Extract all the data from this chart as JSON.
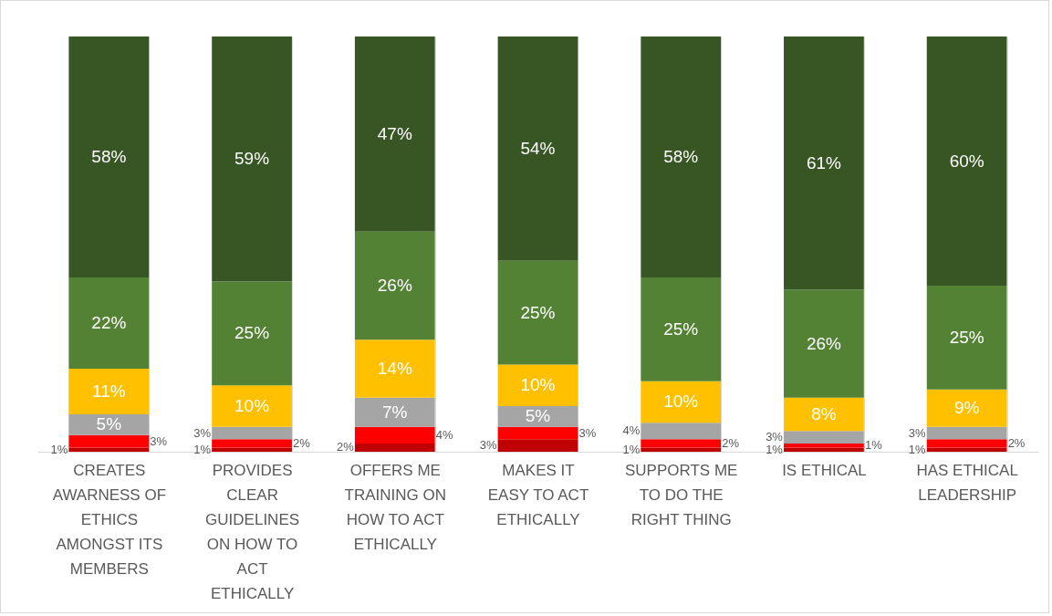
{
  "chart_data": {
    "type": "bar",
    "stacked": true,
    "grid": "x",
    "categories": [
      "CREATES AWARNESS OF ETHICS AMONGST ITS MEMBERS",
      "PROVIDES CLEAR GUIDELINES ON HOW TO ACT ETHICALLY",
      "OFFERS ME TRAINING ON HOW TO ACT ETHICALLY",
      "MAKES IT EASY TO ACT ETHICALLY",
      "SUPPORTS ME TO DO THE RIGHT THING",
      "IS ETHICAL",
      "HAS ETHICAL LEADERSHIP"
    ],
    "series": [
      {
        "color": "#c00000",
        "values": [
          1,
          1,
          2,
          3,
          1,
          1,
          1
        ],
        "value_labels": [
          "1%",
          "1%",
          "2%",
          "3%",
          "1%",
          "1%",
          "1%"
        ]
      },
      {
        "color": "#ff0000",
        "values": [
          3,
          2,
          4,
          3,
          2,
          1,
          2
        ],
        "value_labels": [
          "3%",
          "2%",
          "4%",
          "3%",
          "2%",
          "1%",
          "2%"
        ]
      },
      {
        "color": "#a5a5a5",
        "values": [
          5,
          3,
          7,
          5,
          4,
          3,
          3
        ],
        "value_labels": [
          "5%",
          "3%",
          "7%",
          "5%",
          "4%",
          "3%",
          "3%"
        ]
      },
      {
        "color": "#ffc000",
        "values": [
          11,
          10,
          14,
          10,
          10,
          8,
          9
        ],
        "value_labels": [
          "11%",
          "10%",
          "14%",
          "10%",
          "10%",
          "8%",
          "9%"
        ]
      },
      {
        "color": "#548235",
        "values": [
          22,
          25,
          26,
          25,
          25,
          26,
          25
        ],
        "value_labels": [
          "22%",
          "25%",
          "26%",
          "25%",
          "25%",
          "26%",
          "25%"
        ]
      },
      {
        "color": "#375623",
        "values": [
          58,
          59,
          47,
          54,
          58,
          61,
          60
        ],
        "value_labels": [
          "58%",
          "59%",
          "47%",
          "54%",
          "58%",
          "61%",
          "60%"
        ]
      }
    ]
  }
}
